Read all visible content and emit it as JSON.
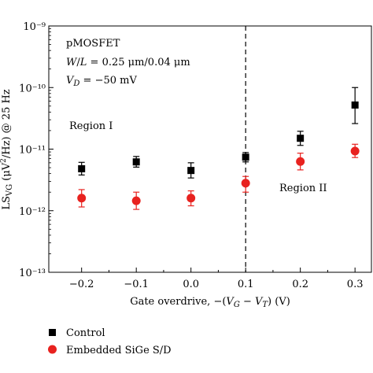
{
  "chart_data": {
    "type": "scatter",
    "xlabel": "Gate overdrive, −(V_G − V_T) (V)",
    "ylabel": "LS_VG (μV²/Hz) @ 25 Hz",
    "xlim": [
      -0.26,
      0.33
    ],
    "ylim": [
      1e-13,
      1e-09
    ],
    "yscale": "log",
    "x_ticks": [
      "−0.2",
      "−0.1",
      "0.0",
      "0.1",
      "0.2",
      "0.3"
    ],
    "x_tick_values": [
      -0.2,
      -0.1,
      0.0,
      0.1,
      0.2,
      0.3
    ],
    "y_ticks": [
      "10⁻¹³",
      "10⁻¹²",
      "10⁻¹¹",
      "10⁻¹⁰",
      "10⁻⁹"
    ],
    "y_tick_values": [
      1e-13,
      1e-12,
      1e-11,
      1e-10,
      1e-09
    ],
    "grid": false,
    "legend_position": "bottom-left",
    "vline_x": 0.1,
    "annotations": [
      "pMOSFET",
      "W/L = 0.25 μm/0.04 μm",
      "V_D = −50 mV",
      "Region I",
      "Region II"
    ],
    "series": [
      {
        "name": "Control",
        "marker": "square",
        "color": "#000000",
        "points": [
          {
            "x": -0.2,
            "y": 4.8e-12,
            "low": 3.8e-12,
            "high": 6.1e-12
          },
          {
            "x": -0.1,
            "y": 6.2e-12,
            "low": 5.1e-12,
            "high": 7.6e-12
          },
          {
            "x": 0.0,
            "y": 4.5e-12,
            "low": 3.4e-12,
            "high": 6e-12
          },
          {
            "x": 0.1,
            "y": 7.4e-12,
            "low": 6.2e-12,
            "high": 8.8e-12
          },
          {
            "x": 0.2,
            "y": 1.5e-11,
            "low": 1.15e-11,
            "high": 1.95e-11
          },
          {
            "x": 0.3,
            "y": 5.2e-11,
            "low": 2.6e-11,
            "high": 1e-10
          }
        ]
      },
      {
        "name": "Embedded SiGe S/D",
        "marker": "circle",
        "color": "#e8221f",
        "points": [
          {
            "x": -0.2,
            "y": 1.6e-12,
            "low": 1.15e-12,
            "high": 2.2e-12
          },
          {
            "x": -0.1,
            "y": 1.45e-12,
            "low": 1.05e-12,
            "high": 2e-12
          },
          {
            "x": 0.0,
            "y": 1.6e-12,
            "low": 1.2e-12,
            "high": 2.1e-12
          },
          {
            "x": 0.1,
            "y": 2.8e-12,
            "low": 2e-12,
            "high": 3.6e-12
          },
          {
            "x": 0.2,
            "y": 6.3e-12,
            "low": 4.6e-12,
            "high": 8.6e-12
          },
          {
            "x": 0.3,
            "y": 9.3e-12,
            "low": 7.3e-12,
            "high": 1.2e-11
          }
        ]
      }
    ]
  }
}
